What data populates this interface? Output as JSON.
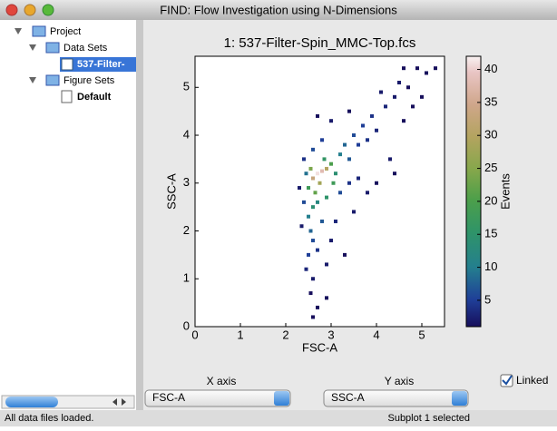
{
  "window": {
    "title": "FIND: Flow Investigation using N-Dimensions"
  },
  "tree": {
    "project": "Project",
    "data_sets": "Data Sets",
    "data_file": "537-Filter-",
    "figure_sets": "Figure Sets",
    "figure": "Default"
  },
  "chart_data": {
    "type": "scatter",
    "title": "1: 537-Filter-Spin_MMC-Top.fcs",
    "x_label": "FSC-A",
    "y_label": "SSC-A",
    "xlim": [
      0,
      5.5
    ],
    "ylim": [
      0,
      5.65
    ],
    "xticks": [
      0,
      1,
      2,
      3,
      4,
      5
    ],
    "yticks": [
      0,
      1,
      2,
      3,
      4,
      5
    ],
    "colorbar": {
      "label": "Events",
      "clim": [
        1,
        42
      ],
      "ticks": [
        5,
        10,
        15,
        20,
        25,
        30,
        35,
        40
      ]
    },
    "x": [
      2.7,
      2.8,
      2.6,
      2.9,
      2.75,
      2.55,
      3.0,
      2.65,
      2.5,
      2.85,
      3.1,
      2.6,
      2.7,
      2.5,
      2.55,
      2.6,
      2.5,
      2.7,
      2.45,
      2.6,
      2.55,
      2.7,
      2.6,
      2.9,
      2.4,
      3.2,
      3.3,
      3.5,
      3.4,
      3.7,
      3.6,
      3.9,
      3.8,
      4.0,
      4.2,
      4.1,
      4.4,
      4.5,
      4.6,
      4.9,
      5.1,
      5.3,
      4.3,
      4.4,
      4.6,
      4.8,
      3.2,
      3.4,
      3.6,
      3.5,
      3.8,
      3.1,
      3.0,
      3.3,
      2.9,
      2.35,
      2.3,
      2.4,
      2.6,
      2.8,
      3.0,
      2.7,
      3.4,
      4.0,
      4.7,
      5.0,
      2.8,
      2.9,
      3.05,
      2.45
    ],
    "y": [
      3.2,
      3.25,
      3.1,
      3.3,
      3.0,
      3.3,
      3.4,
      2.8,
      2.9,
      3.5,
      3.2,
      2.5,
      2.6,
      2.3,
      2.0,
      1.8,
      1.5,
      1.6,
      1.2,
      1.0,
      0.7,
      0.4,
      0.2,
      0.6,
      2.6,
      3.6,
      3.8,
      4.0,
      3.5,
      4.2,
      3.8,
      4.4,
      3.9,
      4.1,
      4.6,
      4.9,
      4.8,
      5.1,
      5.4,
      5.4,
      5.3,
      5.4,
      3.5,
      3.2,
      4.3,
      4.6,
      2.8,
      3.0,
      3.1,
      2.4,
      2.8,
      2.2,
      1.8,
      1.5,
      1.3,
      2.1,
      2.9,
      3.5,
      3.7,
      3.9,
      4.3,
      4.4,
      4.5,
      3.0,
      5.0,
      4.8,
      2.2,
      2.7,
      3.0,
      3.2
    ],
    "events": [
      41,
      38,
      33,
      30,
      28,
      24,
      20,
      22,
      18,
      16,
      14,
      14,
      12,
      10,
      8,
      6,
      5,
      4,
      3,
      2,
      1,
      1,
      1,
      1,
      6,
      10,
      8,
      6,
      7,
      5,
      5,
      4,
      4,
      3,
      3,
      2,
      2,
      2,
      1,
      1,
      1,
      1,
      2,
      1,
      1,
      1,
      6,
      4,
      3,
      2,
      2,
      3,
      2,
      1,
      2,
      2,
      2,
      4,
      6,
      5,
      2,
      1,
      1,
      1,
      1,
      1,
      7,
      15,
      18,
      9
    ]
  },
  "controls": {
    "x_axis_label": "X axis",
    "x_axis_value": "FSC-A",
    "y_axis_label": "Y axis",
    "y_axis_value": "SSC-A",
    "linked": "Linked"
  },
  "status": {
    "left": "All data files loaded.",
    "right": "Subplot 1 selected"
  }
}
